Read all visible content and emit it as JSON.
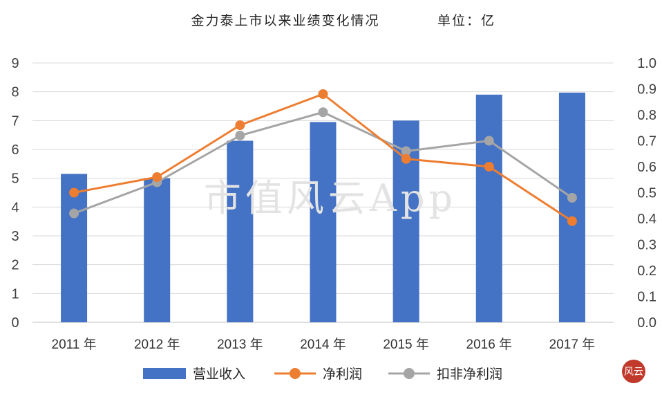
{
  "title": "金力泰上市以来业绩变化情况",
  "unit": "单位：亿",
  "watermark": "市值风云App",
  "logo_text": "风云",
  "chart_data": {
    "type": "bar",
    "categories": [
      "2011 年",
      "2012 年",
      "2013 年",
      "2014 年",
      "2015 年",
      "2016 年",
      "2017 年"
    ],
    "series": [
      {
        "name": "营业收入",
        "type": "bar",
        "axis": "left",
        "color": "#4472C4",
        "values": [
          5.15,
          5.0,
          6.3,
          6.95,
          7.0,
          7.9,
          7.97
        ]
      },
      {
        "name": "净利润",
        "type": "line",
        "axis": "right",
        "color": "#ED7D31",
        "values": [
          0.5,
          0.56,
          0.76,
          0.88,
          0.63,
          0.6,
          0.39
        ]
      },
      {
        "name": "扣非净利润",
        "type": "line",
        "axis": "right",
        "color": "#A5A5A5",
        "values": [
          0.42,
          0.54,
          0.72,
          0.81,
          0.66,
          0.7,
          0.48
        ]
      }
    ],
    "left_axis": {
      "ylim": [
        0,
        9
      ],
      "ticks": [
        "0",
        "1",
        "2",
        "3",
        "4",
        "5",
        "6",
        "7",
        "8",
        "9"
      ]
    },
    "right_axis": {
      "ylim": [
        0,
        1.0
      ],
      "ticks": [
        "0.0",
        "0.1",
        "0.2",
        "0.3",
        "0.4",
        "0.5",
        "0.6",
        "0.7",
        "0.8",
        "0.9",
        "1.0"
      ]
    },
    "grid": true,
    "legend_position": "bottom"
  }
}
